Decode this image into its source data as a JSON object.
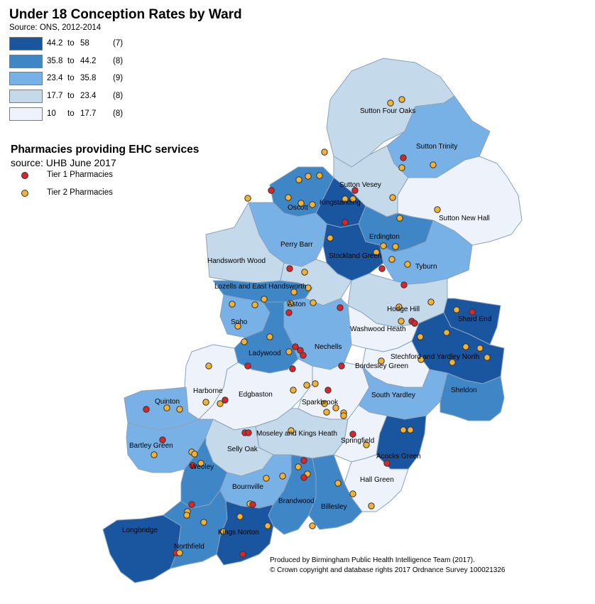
{
  "title": "Under 18 Conception Rates by Ward",
  "subtitle": "Source: ONS, 2012-2014",
  "legend": [
    {
      "from": "44.2",
      "to": "to",
      "upper": "58",
      "count": "(7)",
      "color": "#1a569f"
    },
    {
      "from": "35.8",
      "to": "to",
      "upper": "44.2",
      "count": "(8)",
      "color": "#3e86c6"
    },
    {
      "from": "23.4",
      "to": "to",
      "upper": "35.8",
      "count": "(9)",
      "color": "#77b1e6"
    },
    {
      "from": "17.7",
      "to": "to",
      "upper": "23.4",
      "count": "(8)",
      "color": "#c4d9e9"
    },
    {
      "from": "10",
      "to": "to",
      "upper": "17.7",
      "count": "(8)",
      "color": "#eef3fb"
    }
  ],
  "pharmacy_title": "Pharmacies providing EHC services",
  "pharmacy_source": "source: UHB June 2017",
  "pharmacy_legend": [
    {
      "label": "Tier 1 Pharmacies",
      "color": "#d9262a"
    },
    {
      "label": "Tier 2 Pharmacies",
      "color": "#f2b233"
    }
  ],
  "wards": [
    "Sutton Four Oaks",
    "Sutton Trinity",
    "Sutton Vesey",
    "Sutton New Hall",
    "Oscott",
    "Kingstanding",
    "Perry Barr",
    "Erdington",
    "Stockland Green",
    "Handsworth Wood",
    "Tyburn",
    "Lozells and East Handsworth",
    "Aston",
    "Hodge Hill",
    "Shard End",
    "Washwood Heath",
    "Soho",
    "Nechells",
    "Ladywood",
    "Stechford and Yardley North",
    "Bordesley Green",
    "Harborne",
    "Edgbaston",
    "Sparkbrook",
    "South Yardley",
    "Sheldon",
    "Quinton",
    "Moseley and Kings Heath",
    "Springfield",
    "Bartley Green",
    "Selly Oak",
    "Acocks Green",
    "Weoley",
    "Hall Green",
    "Bournville",
    "Brandwood",
    "Billesley",
    "Longbridge",
    "Kings Norton",
    "Northfield"
  ],
  "credits": [
    "Produced by Birmingham Public Health Intelligence Team (2017).",
    "© Crown copyright and database rights 2017 Ordnance Survey 100021326"
  ]
}
